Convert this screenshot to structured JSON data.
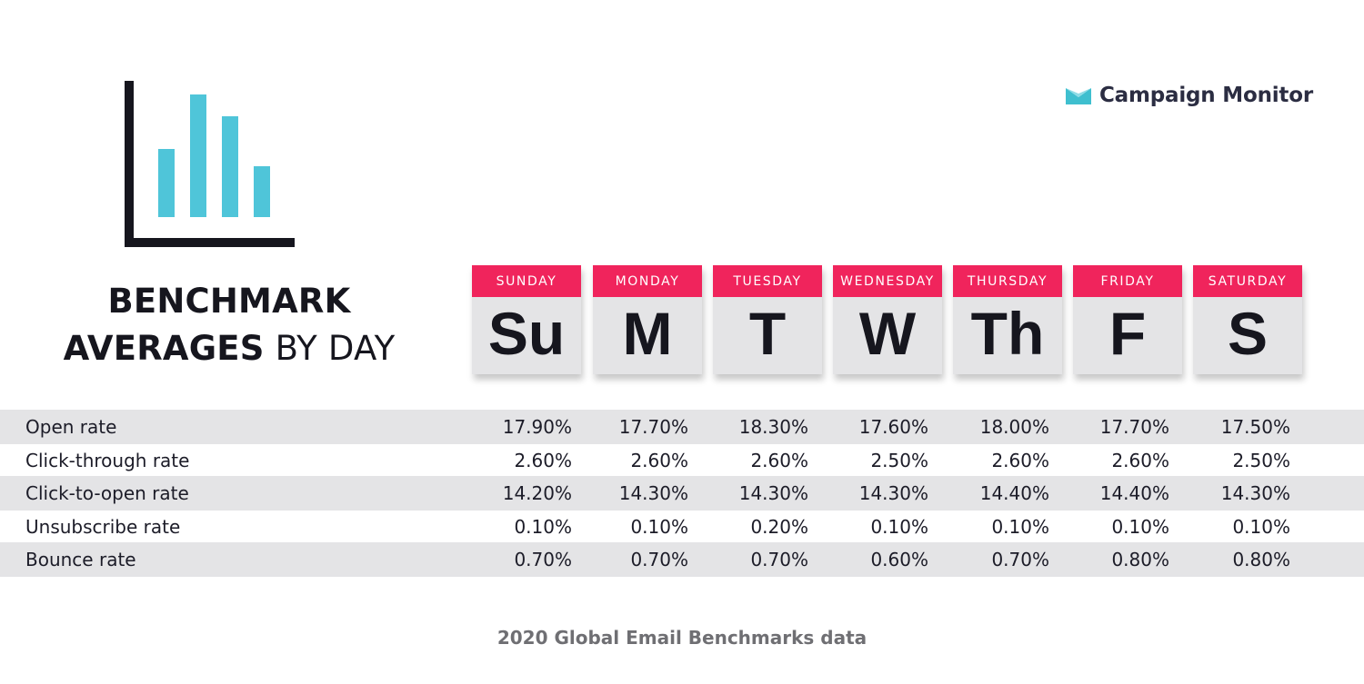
{
  "brand": {
    "name": "Campaign Monitor",
    "logo_icon": "envelope-m-icon",
    "logo_color": "#3fbfcf"
  },
  "colors": {
    "accent": "#f0245c",
    "icon_bars": "#4fc5d9",
    "card_bg": "#e4e4e6",
    "row_shade": "#e4e4e6",
    "text": "#1c1c28",
    "footer_text": "#6f6f73"
  },
  "title": {
    "line1": "BENCHMARK",
    "line2_bold": "AVERAGES",
    "line2_light": "BY DAY"
  },
  "footer": "2020 Global Email Benchmarks data",
  "chart_data": {
    "type": "table",
    "title": "BENCHMARK AVERAGES BY DAY",
    "columns": [
      {
        "name": "SUNDAY",
        "abbr": "Su"
      },
      {
        "name": "MONDAY",
        "abbr": "M"
      },
      {
        "name": "TUESDAY",
        "abbr": "T"
      },
      {
        "name": "WEDNESDAY",
        "abbr": "W"
      },
      {
        "name": "THURSDAY",
        "abbr": "Th"
      },
      {
        "name": "FRIDAY",
        "abbr": "F"
      },
      {
        "name": "SATURDAY",
        "abbr": "S"
      }
    ],
    "rows": [
      {
        "metric": "Open rate",
        "values": [
          "17.90%",
          "17.70%",
          "18.30%",
          "17.60%",
          "18.00%",
          "17.70%",
          "17.50%"
        ]
      },
      {
        "metric": "Click-through rate",
        "values": [
          "2.60%",
          "2.60%",
          "2.60%",
          "2.50%",
          "2.60%",
          "2.60%",
          "2.50%"
        ]
      },
      {
        "metric": "Click-to-open rate",
        "values": [
          "14.20%",
          "14.30%",
          "14.30%",
          "14.30%",
          "14.40%",
          "14.40%",
          "14.30%"
        ]
      },
      {
        "metric": "Unsubscribe rate",
        "values": [
          "0.10%",
          "0.10%",
          "0.20%",
          "0.10%",
          "0.10%",
          "0.10%",
          "0.10%"
        ]
      },
      {
        "metric": "Bounce rate",
        "values": [
          "0.70%",
          "0.70%",
          "0.70%",
          "0.60%",
          "0.70%",
          "0.80%",
          "0.80%"
        ]
      }
    ],
    "source": "2020 Global Email Benchmarks data"
  }
}
